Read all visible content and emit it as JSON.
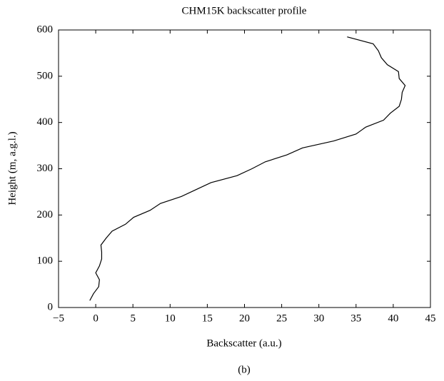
{
  "chart_data": {
    "type": "line",
    "title": "CHM15K backscatter profile",
    "xlabel": "Backscatter (a.u.)",
    "ylabel": "Height (m, a.g.l.)",
    "caption": "(b)",
    "color": "#000000",
    "x": [
      -0.8,
      -0.3,
      0.4,
      0.5,
      0.0,
      0.5,
      0.8,
      0.8,
      0.7,
      1.4,
      2.2,
      4.0,
      5.1,
      7.3,
      8.7,
      11.5,
      13.5,
      15.5,
      19.0,
      21.0,
      22.8,
      25.7,
      27.8,
      32.0,
      35.0,
      36.3,
      38.7,
      39.6,
      40.8,
      41.1,
      41.2,
      41.6,
      40.8,
      40.7,
      39.2,
      38.4,
      38.0,
      37.3,
      33.8
    ],
    "values": [
      15,
      30,
      45,
      60,
      75,
      90,
      105,
      120,
      135,
      150,
      165,
      180,
      195,
      210,
      225,
      240,
      255,
      270,
      285,
      300,
      315,
      330,
      345,
      360,
      375,
      390,
      405,
      420,
      435,
      450,
      465,
      480,
      495,
      510,
      525,
      540,
      555,
      570,
      585
    ],
    "xlim": [
      -5,
      45
    ],
    "ylim": [
      0,
      600
    ],
    "xticks": [
      {
        "value": -5,
        "label": "−5"
      },
      0,
      5,
      10,
      15,
      20,
      25,
      30,
      35,
      40,
      45
    ],
    "yticks": [
      0,
      100,
      200,
      300,
      400,
      500,
      600
    ]
  }
}
